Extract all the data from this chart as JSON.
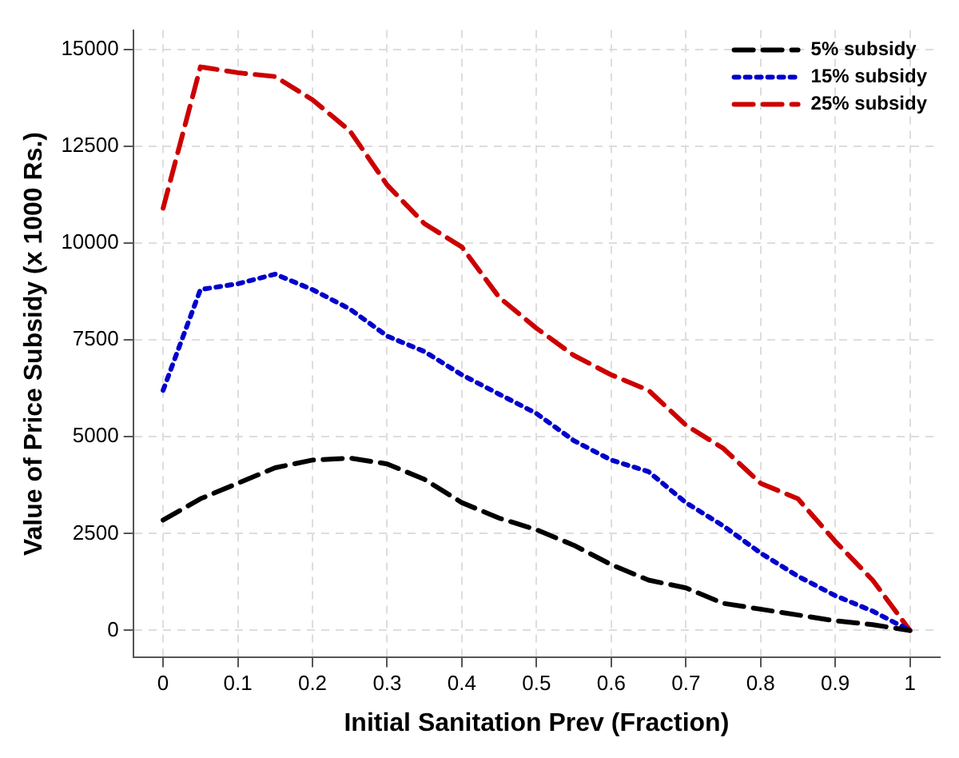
{
  "chart_data": {
    "type": "line",
    "xlabel": "Initial Sanitation Prev (Fraction)",
    "ylabel": "Value of Price Subsidy (x 1000 Rs.)",
    "x": [
      0,
      0.05,
      0.1,
      0.15,
      0.2,
      0.25,
      0.3,
      0.35,
      0.4,
      0.45,
      0.5,
      0.55,
      0.6,
      0.65,
      0.7,
      0.75,
      0.8,
      0.85,
      0.9,
      0.95,
      1
    ],
    "series": [
      {
        "name": "5% subsidy",
        "color": "#000000",
        "line_style": "dashed",
        "values": [
          2850,
          3400,
          3800,
          4200,
          4400,
          4450,
          4300,
          3900,
          3300,
          2900,
          2600,
          2200,
          1700,
          1300,
          1100,
          700,
          550,
          400,
          250,
          150,
          0
        ]
      },
      {
        "name": "15% subsidy",
        "color": "#0000cc",
        "line_style": "dotted",
        "values": [
          6200,
          8800,
          8950,
          9200,
          8800,
          8300,
          7600,
          7200,
          6600,
          6100,
          5600,
          4900,
          4400,
          4100,
          3300,
          2700,
          2000,
          1400,
          900,
          500,
          0
        ]
      },
      {
        "name": "25% subsidy",
        "color": "#cc0000",
        "line_style": "dashed",
        "values": [
          10900,
          14550,
          14400,
          14300,
          13700,
          12900,
          11500,
          10500,
          9900,
          8600,
          7800,
          7100,
          6600,
          6200,
          5300,
          4700,
          3800,
          3400,
          2300,
          1300,
          0
        ]
      }
    ],
    "xlim": [
      -0.04,
      1.04
    ],
    "xticks": [
      0,
      0.1,
      0.2,
      0.3,
      0.4,
      0.5,
      0.6,
      0.7,
      0.8,
      0.9,
      1
    ],
    "ylim": [
      -700,
      15500
    ],
    "yticks": [
      0,
      2500,
      5000,
      7500,
      10000,
      12500,
      15000
    ],
    "grid": true,
    "legend": "top right",
    "marker": "none"
  }
}
